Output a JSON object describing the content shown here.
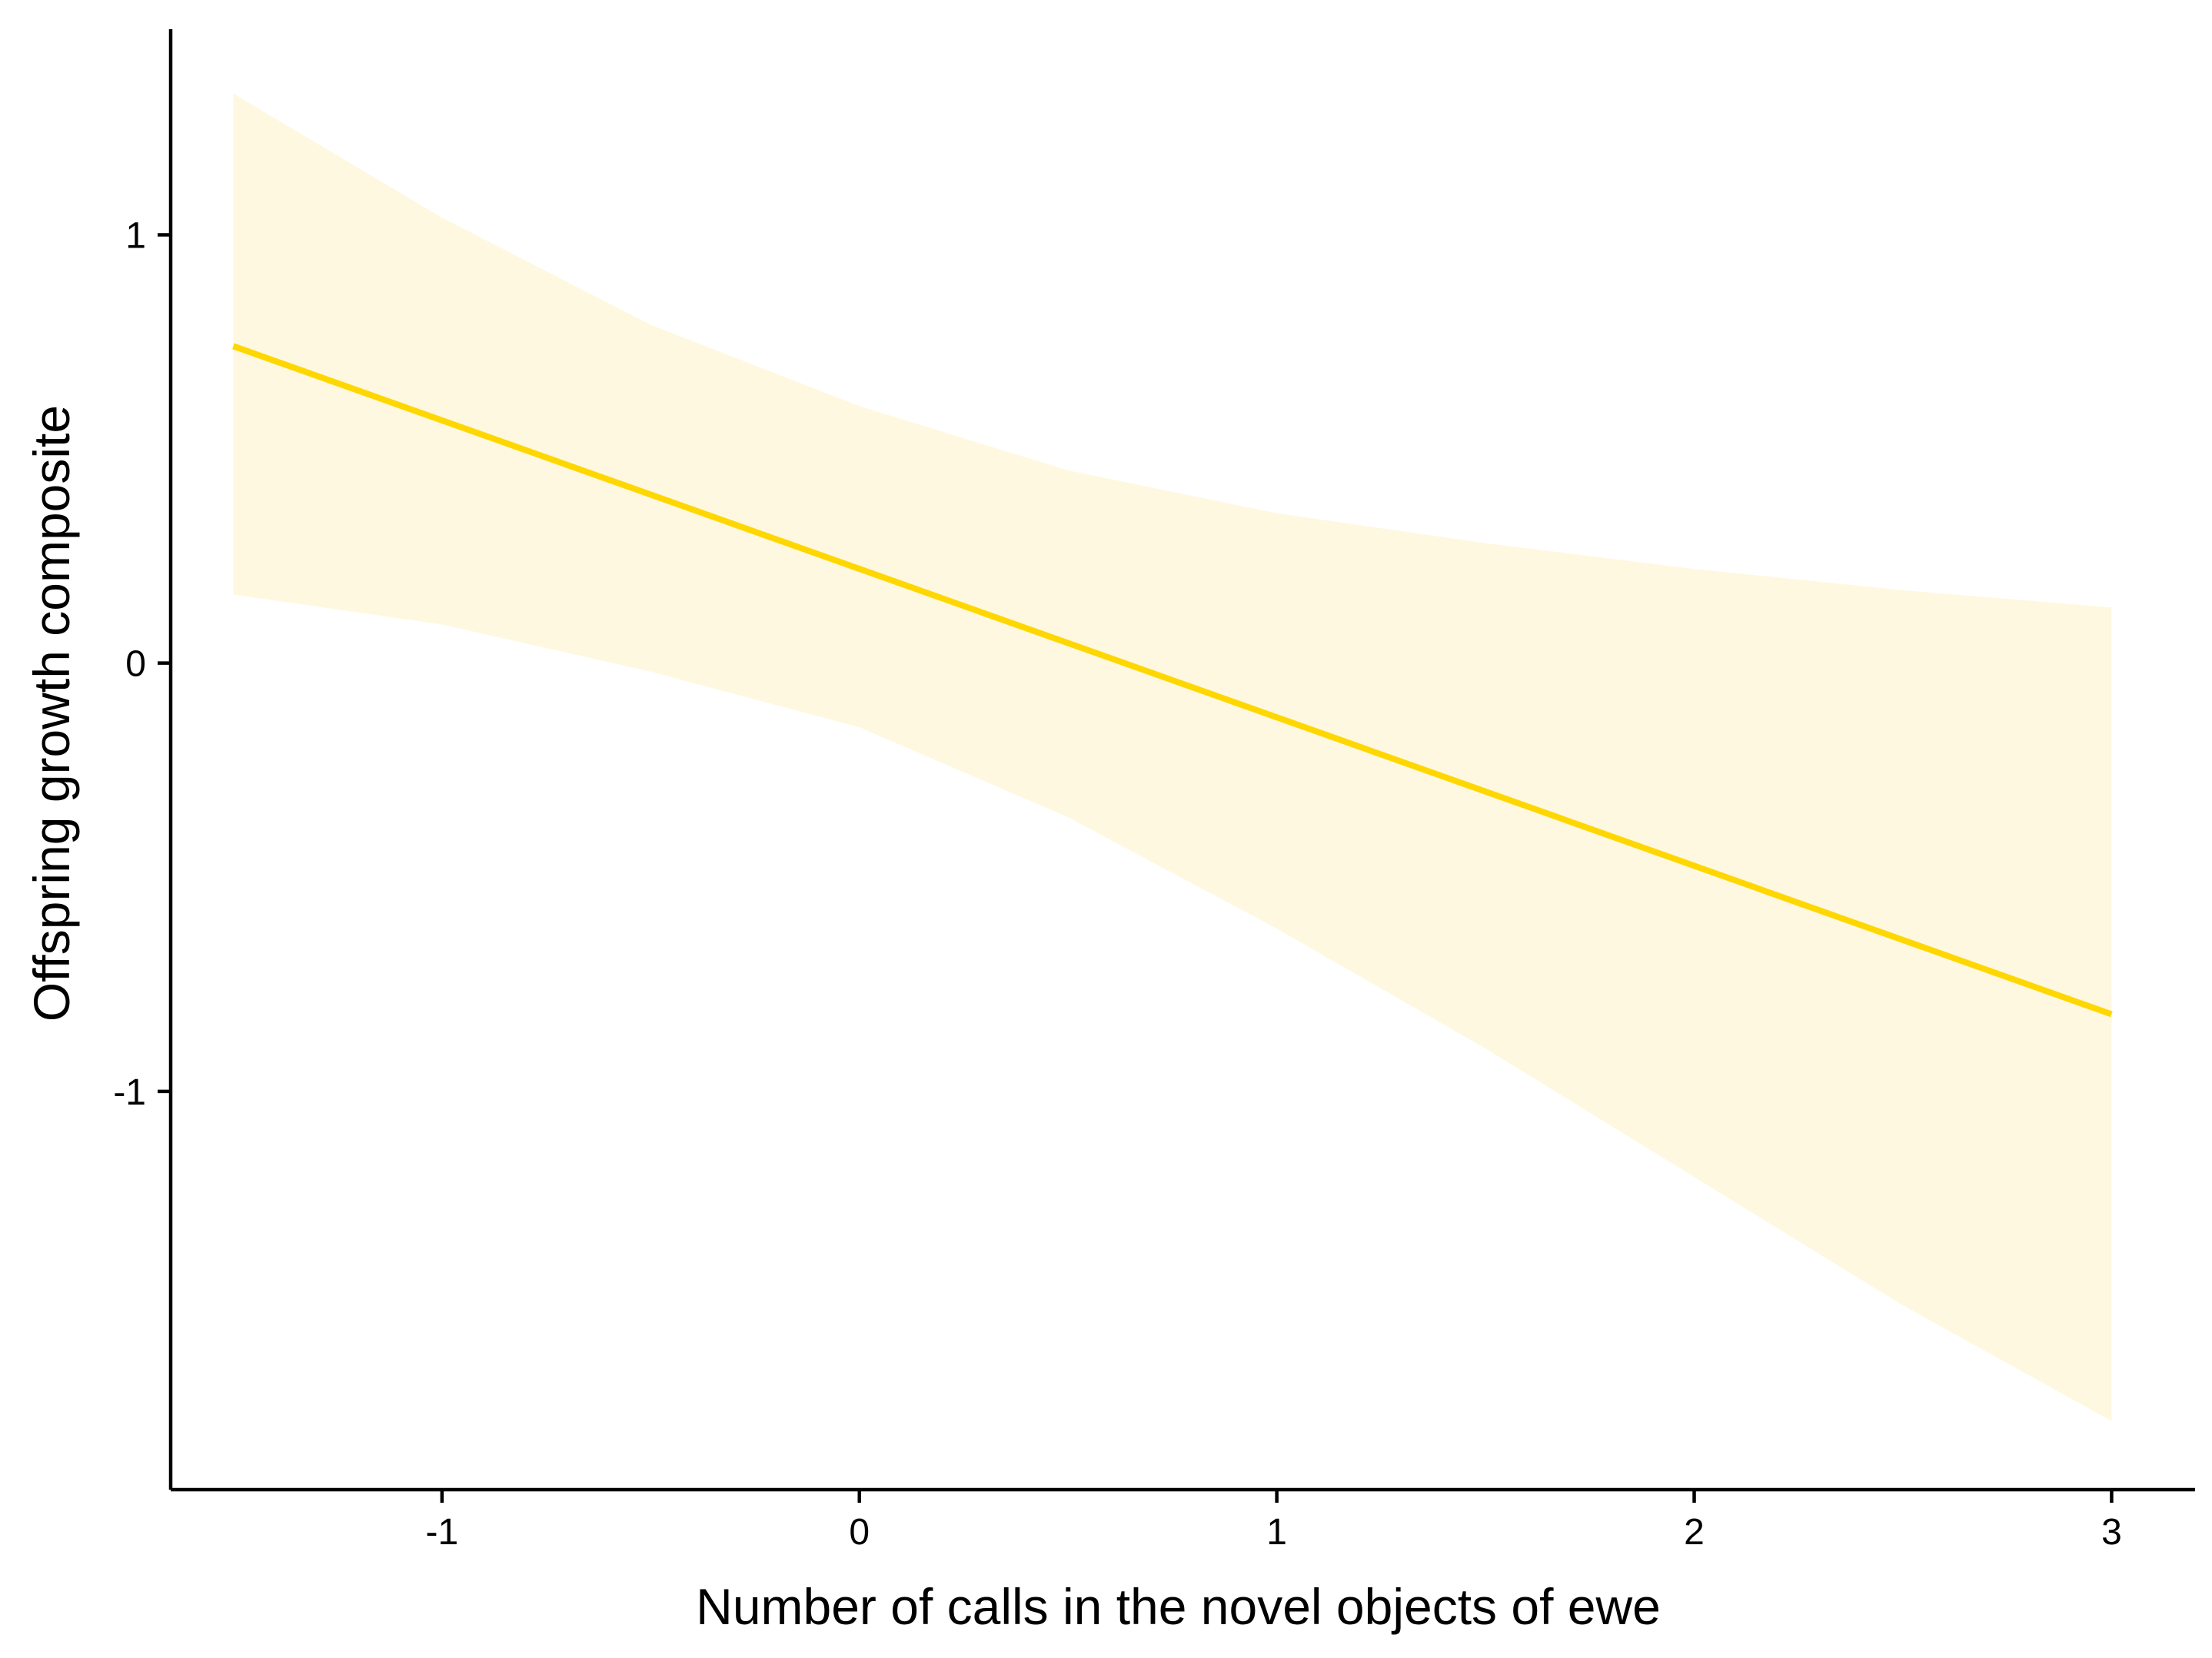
{
  "chart_data": {
    "type": "line",
    "xlabel": "Number of calls in the novel objects of ewe",
    "ylabel": "Offspring growth composite",
    "xlim": [
      -1.65,
      3.2
    ],
    "ylim": [
      -1.93,
      1.48
    ],
    "x_ticks": [
      -1,
      0,
      1,
      2,
      3
    ],
    "x_tick_labels": [
      "-1",
      "0",
      "1",
      "2",
      "3"
    ],
    "y_ticks": [
      -1,
      0,
      1
    ],
    "y_tick_labels": [
      "-1",
      "0",
      "1"
    ],
    "grid": false,
    "legend": "none",
    "series": [
      {
        "type": "line",
        "color": "#FFD700",
        "x": [
          -1.5,
          3.0
        ],
        "y": [
          0.74,
          -0.82
        ]
      }
    ],
    "ribbon": {
      "color": "#FFF8E1",
      "x": [
        -1.5,
        -1.0,
        -0.5,
        0.0,
        0.5,
        1.0,
        1.5,
        2.0,
        2.5,
        3.0
      ],
      "upper": [
        1.33,
        1.04,
        0.79,
        0.6,
        0.45,
        0.35,
        0.28,
        0.22,
        0.17,
        0.13
      ],
      "lower": [
        0.16,
        0.09,
        -0.02,
        -0.15,
        -0.36,
        -0.62,
        -0.9,
        -1.2,
        -1.5,
        -1.77
      ]
    }
  }
}
